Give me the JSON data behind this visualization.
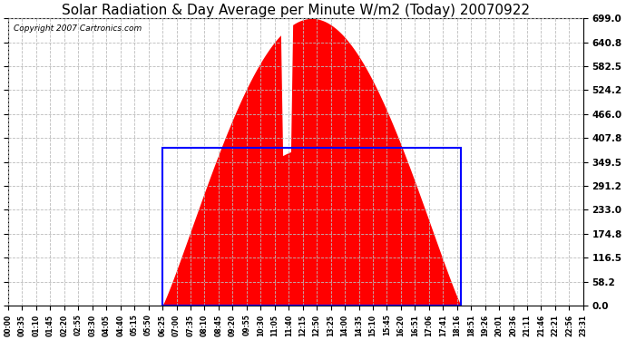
{
  "title": "Solar Radiation & Day Average per Minute W/m2 (Today) 20070922",
  "copyright": "Copyright 2007 Cartronics.com",
  "background_color": "#ffffff",
  "plot_bg_color": "#ffffff",
  "grid_color": "#aaaaaa",
  "yticks": [
    0.0,
    58.2,
    116.5,
    174.8,
    233.0,
    291.2,
    349.5,
    407.8,
    466.0,
    524.2,
    582.5,
    640.8,
    699.0
  ],
  "ymax": 699.0,
  "ymin": 0.0,
  "fill_color": "#ff0000",
  "avg_box_color": "#0000ff",
  "avg_value": 383.0,
  "sunrise_idx": 77,
  "sunset_idx": 226,
  "peak_idx": 147,
  "peak_value": 699.0,
  "total_points": 288,
  "xtick_labels": [
    "00:00",
    "00:35",
    "01:10",
    "01:45",
    "02:20",
    "02:55",
    "03:30",
    "04:05",
    "04:40",
    "05:15",
    "05:50",
    "06:25",
    "07:00",
    "07:35",
    "08:10",
    "08:45",
    "09:20",
    "09:55",
    "10:30",
    "11:05",
    "11:40",
    "12:15",
    "12:50",
    "13:25",
    "14:00",
    "14:35",
    "15:10",
    "15:45",
    "16:20",
    "16:51",
    "17:06",
    "17:41",
    "18:16",
    "18:51",
    "19:26",
    "20:01",
    "20:36",
    "21:11",
    "21:46",
    "22:21",
    "22:56",
    "23:31"
  ],
  "title_fontsize": 11,
  "copyright_fontsize": 6.5,
  "tick_fontsize": 5.5,
  "ytick_fontsize": 7.5
}
